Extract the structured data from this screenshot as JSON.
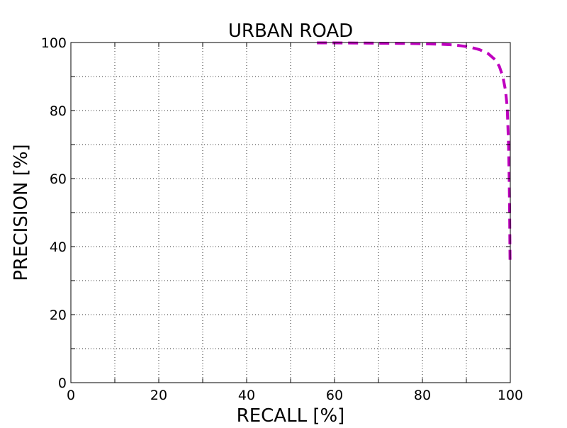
{
  "chart_data": {
    "type": "line",
    "title": "URBAN ROAD",
    "xlabel": "RECALL [%]",
    "ylabel": "PRECISION [%]",
    "xlim": [
      0,
      100
    ],
    "ylim": [
      0,
      100
    ],
    "xticks": [
      "0",
      "20",
      "40",
      "60",
      "80",
      "100"
    ],
    "yticks": [
      "0",
      "20",
      "40",
      "60",
      "80",
      "100"
    ],
    "grid": true,
    "legend": "none",
    "series": [
      {
        "line_style": "dashed",
        "color": "#bf00bf",
        "points": [
          [
            56,
            99.9
          ],
          [
            60,
            99.9
          ],
          [
            65,
            99.85
          ],
          [
            70,
            99.8
          ],
          [
            75,
            99.75
          ],
          [
            80,
            99.65
          ],
          [
            84,
            99.5
          ],
          [
            87,
            99.3
          ],
          [
            89,
            99.0
          ],
          [
            91,
            98.6
          ],
          [
            93,
            97.9
          ],
          [
            95,
            96.7
          ],
          [
            96.5,
            95.0
          ],
          [
            97.5,
            93.0
          ],
          [
            98.3,
            90.0
          ],
          [
            98.9,
            86.0
          ],
          [
            99.3,
            81.0
          ],
          [
            99.6,
            70.0
          ],
          [
            99.75,
            60.0
          ],
          [
            99.85,
            50.0
          ],
          [
            99.9,
            42.0
          ],
          [
            99.95,
            35.0
          ]
        ]
      }
    ]
  }
}
